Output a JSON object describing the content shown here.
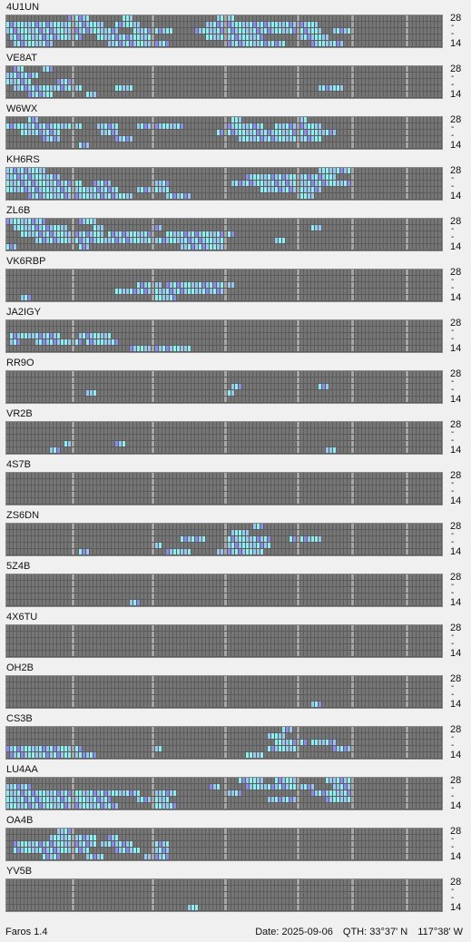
{
  "app": {
    "name": "Faros 1.4"
  },
  "status": {
    "date_label": "Date:",
    "date": "2025-09-06",
    "qth_label": "QTH:",
    "lat": "33°37' N",
    "lon": "117°38' W"
  },
  "axis": {
    "top": "28",
    "mid": "-",
    "bottom": "14"
  },
  "colors": {
    "empty": "#767676",
    "separator": "#a8a8a8",
    "weak": "#8c8cf0",
    "mid": "#96c8f0",
    "strong": "#8cf0f0",
    "background": "#f0f0f0"
  },
  "beacons": [
    {
      "call": "4U1UN",
      "rows": [
        [
          [
            17,
            22
          ],
          [
            32,
            34
          ],
          [
            58,
            62
          ]
        ],
        [
          [
            0,
            26
          ],
          [
            30,
            36
          ],
          [
            55,
            85
          ]
        ],
        [
          [
            0,
            30
          ],
          [
            35,
            45
          ],
          [
            52,
            86
          ],
          [
            90,
            94
          ]
        ],
        [
          [
            1,
            20
          ],
          [
            25,
            40
          ],
          [
            55,
            70
          ],
          [
            80,
            88
          ]
        ],
        [
          [
            2,
            12
          ],
          [
            28,
            44
          ],
          [
            60,
            76
          ],
          [
            84,
            92
          ]
        ]
      ]
    },
    {
      "call": "VE8AT",
      "rows": [
        [
          [
            2,
            4
          ],
          [
            10,
            12
          ]
        ],
        [
          [
            0,
            8
          ]
        ],
        [
          [
            0,
            6
          ],
          [
            14,
            18
          ]
        ],
        [
          [
            2,
            20
          ],
          [
            30,
            34
          ],
          [
            86,
            92
          ]
        ],
        [
          [
            6,
            12
          ],
          [
            22,
            24
          ]
        ]
      ]
    },
    {
      "call": "W6WX",
      "rows": [
        [
          [
            6,
            8
          ],
          [
            62,
            64
          ],
          [
            80,
            82
          ]
        ],
        [
          [
            0,
            20
          ],
          [
            25,
            30
          ],
          [
            36,
            48
          ],
          [
            60,
            70
          ],
          [
            74,
            86
          ]
        ],
        [
          [
            4,
            14
          ],
          [
            26,
            30
          ],
          [
            58,
            90
          ]
        ],
        [
          [
            10,
            14
          ],
          [
            30,
            34
          ],
          [
            64,
            86
          ]
        ],
        [
          [
            20,
            22
          ]
        ]
      ]
    },
    {
      "call": "KH6RS",
      "rows": [
        [
          [
            0,
            10
          ],
          [
            86,
            94
          ]
        ],
        [
          [
            0,
            14
          ],
          [
            66,
            90
          ]
        ],
        [
          [
            0,
            20
          ],
          [
            24,
            28
          ],
          [
            40,
            44
          ],
          [
            62,
            94
          ]
        ],
        [
          [
            0,
            30
          ],
          [
            36,
            44
          ],
          [
            70,
            86
          ]
        ],
        [
          [
            6,
            34
          ],
          [
            44,
            50
          ],
          [
            80,
            84
          ]
        ]
      ]
    },
    {
      "call": "ZL6B",
      "rows": [
        [
          [
            0,
            10
          ],
          [
            20,
            24
          ]
        ],
        [
          [
            2,
            16
          ],
          [
            24,
            26
          ],
          [
            40,
            42
          ],
          [
            84,
            86
          ]
        ],
        [
          [
            4,
            26
          ],
          [
            28,
            40
          ],
          [
            44,
            62
          ]
        ],
        [
          [
            8,
            60
          ],
          [
            74,
            76
          ]
        ],
        [
          [
            0,
            2
          ],
          [
            20,
            22
          ],
          [
            48,
            60
          ]
        ]
      ]
    },
    {
      "call": "VK6RBP",
      "rows": [
        [],
        [],
        [
          [
            36,
            42
          ],
          [
            44,
            62
          ]
        ],
        [
          [
            30,
            60
          ]
        ],
        [
          [
            4,
            6
          ],
          [
            40,
            46
          ]
        ]
      ]
    },
    {
      "call": "JA2IGY",
      "rows": [
        [],
        [],
        [
          [
            1,
            14
          ],
          [
            20,
            28
          ]
        ],
        [
          [
            1,
            3
          ],
          [
            8,
            20
          ],
          [
            22,
            30
          ]
        ],
        [
          [
            34,
            50
          ]
        ]
      ]
    },
    {
      "call": "RR9O",
      "rows": [
        [],
        [],
        [
          [
            62,
            64
          ],
          [
            86,
            88
          ]
        ],
        [
          [
            22,
            24
          ],
          [
            60,
            62
          ]
        ],
        []
      ]
    },
    {
      "call": "VR2B",
      "rows": [
        [],
        [],
        [],
        [
          [
            16,
            18
          ],
          [
            30,
            32
          ]
        ],
        [
          [
            12,
            14
          ],
          [
            88,
            90
          ]
        ]
      ]
    },
    {
      "call": "4S7B",
      "rows": [
        [],
        [],
        [],
        [],
        []
      ]
    },
    {
      "call": "ZS6DN",
      "rows": [
        [
          [
            68,
            70
          ]
        ],
        [
          [
            62,
            66
          ]
        ],
        [
          [
            48,
            54
          ],
          [
            60,
            72
          ],
          [
            78,
            86
          ]
        ],
        [
          [
            40,
            42
          ],
          [
            60,
            72
          ]
        ],
        [
          [
            20,
            22
          ],
          [
            44,
            50
          ],
          [
            58,
            70
          ]
        ]
      ]
    },
    {
      "call": "5Z4B",
      "rows": [
        [],
        [],
        [],
        [],
        [
          [
            34,
            36
          ]
        ]
      ]
    },
    {
      "call": "4X6TU",
      "rows": [
        [],
        [],
        [],
        [],
        []
      ]
    },
    {
      "call": "OH2B",
      "rows": [
        [],
        [],
        [],
        [],
        [
          [
            84,
            86
          ]
        ]
      ]
    },
    {
      "call": "CS3B",
      "rows": [
        [
          [
            76,
            78
          ]
        ],
        [
          [
            72,
            76
          ]
        ],
        [
          [
            74,
            82
          ],
          [
            84,
            90
          ]
        ],
        [
          [
            0,
            20
          ],
          [
            40,
            42
          ],
          [
            72,
            80
          ],
          [
            90,
            94
          ]
        ],
        [
          [
            1,
            24
          ],
          [
            66,
            70
          ]
        ]
      ]
    },
    {
      "call": "LU4AA",
      "rows": [
        [
          [
            64,
            70
          ],
          [
            74,
            80
          ],
          [
            88,
            94
          ]
        ],
        [
          [
            0,
            6
          ],
          [
            56,
            58
          ],
          [
            66,
            84
          ],
          [
            90,
            94
          ]
        ],
        [
          [
            0,
            36
          ],
          [
            40,
            46
          ],
          [
            60,
            64
          ],
          [
            84,
            94
          ]
        ],
        [
          [
            0,
            28
          ],
          [
            36,
            44
          ],
          [
            72,
            80
          ],
          [
            88,
            94
          ]
        ],
        [
          [
            0,
            30
          ],
          [
            40,
            46
          ]
        ]
      ]
    },
    {
      "call": "OA4B",
      "rows": [
        [
          [
            14,
            18
          ]
        ],
        [
          [
            12,
            24
          ],
          [
            28,
            30
          ]
        ],
        [
          [
            2,
            24
          ],
          [
            26,
            34
          ],
          [
            40,
            44
          ]
        ],
        [
          [
            2,
            22
          ],
          [
            30,
            36
          ],
          [
            40,
            44
          ]
        ],
        [
          [
            10,
            14
          ],
          [
            22,
            26
          ],
          [
            38,
            44
          ]
        ]
      ]
    },
    {
      "call": "YV5B",
      "rows": [
        [],
        [],
        [],
        [],
        [
          [
            50,
            52
          ]
        ]
      ]
    }
  ]
}
